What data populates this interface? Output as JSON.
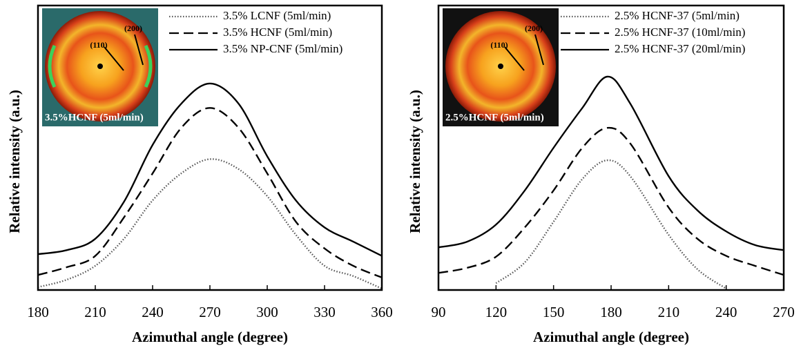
{
  "chart_data": [
    {
      "type": "line",
      "xlabel": "Azimuthal angle (degree)",
      "ylabel": "Relative intensity  (a.u.)",
      "xlim": [
        180,
        360
      ],
      "xticks": [
        180,
        210,
        240,
        270,
        300,
        330,
        360
      ],
      "ylim": [
        0,
        100
      ],
      "legend": "upper right",
      "x": [
        180,
        195,
        210,
        225,
        240,
        255,
        270,
        285,
        300,
        315,
        330,
        345,
        360
      ],
      "series": [
        {
          "name": "3.5% LCNF (5ml/min)",
          "color": "#555555",
          "linestyle": "dotted",
          "values": [
            1,
            3.6,
            8.5,
            18,
            31.5,
            41,
            46,
            42.5,
            33,
            19.4,
            8.5,
            4.9,
            0.5
          ]
        },
        {
          "name": "3.5% HCNF (5ml/min)",
          "color": "#000000",
          "linestyle": "dashed",
          "values": [
            5.3,
            8,
            12,
            25.5,
            41,
            57,
            64,
            57,
            41,
            24,
            14.6,
            8.5,
            4.4
          ]
        },
        {
          "name": "3.5% NP-CNF (5ml/min)",
          "color": "#000000",
          "linestyle": "solid",
          "values": [
            12.6,
            14,
            18,
            31,
            51,
            65.5,
            72.6,
            65.5,
            47,
            31.5,
            22,
            17,
            12
          ]
        }
      ],
      "inset": {
        "label": "3.5%HCNF (5ml/min)",
        "annotations": [
          "(110)",
          "(200)"
        ]
      }
    },
    {
      "type": "line",
      "xlabel": "Azimuthal angle (degree)",
      "ylabel": "Relative intensity  (a.u.)",
      "xlim": [
        90,
        270
      ],
      "xticks": [
        90,
        120,
        150,
        180,
        210,
        240,
        270
      ],
      "ylim": [
        0,
        100
      ],
      "legend": "upper right",
      "x": [
        90,
        105,
        120,
        135,
        150,
        165,
        178,
        190,
        210,
        225,
        240,
        255,
        270
      ],
      "series": [
        {
          "name": "2.5% HCNF-37 (5ml/min)",
          "color": "#555555",
          "linestyle": "dotted",
          "values": [
            null,
            null,
            2.4,
            9.7,
            24,
            39,
            45.6,
            40,
            19.4,
            7.3,
            0.5,
            null,
            null
          ]
        },
        {
          "name": "2.5% HCNF-37 (10ml/min)",
          "color": "#000000",
          "linestyle": "dashed",
          "values": [
            6,
            7.8,
            11.7,
            22,
            35,
            50,
            57,
            51.5,
            29,
            18,
            12,
            8.5,
            5.3
          ]
        },
        {
          "name": "2.5% HCNF-37 (20ml/min)",
          "color": "#000000",
          "linestyle": "solid",
          "values": [
            15,
            17,
            23,
            35,
            50,
            64,
            75,
            65.5,
            40,
            28,
            20.6,
            15.8,
            14
          ]
        }
      ],
      "inset": {
        "label": "2.5%HCNF (5ml/min)",
        "annotations": [
          "(110)",
          "(200)"
        ]
      }
    }
  ]
}
